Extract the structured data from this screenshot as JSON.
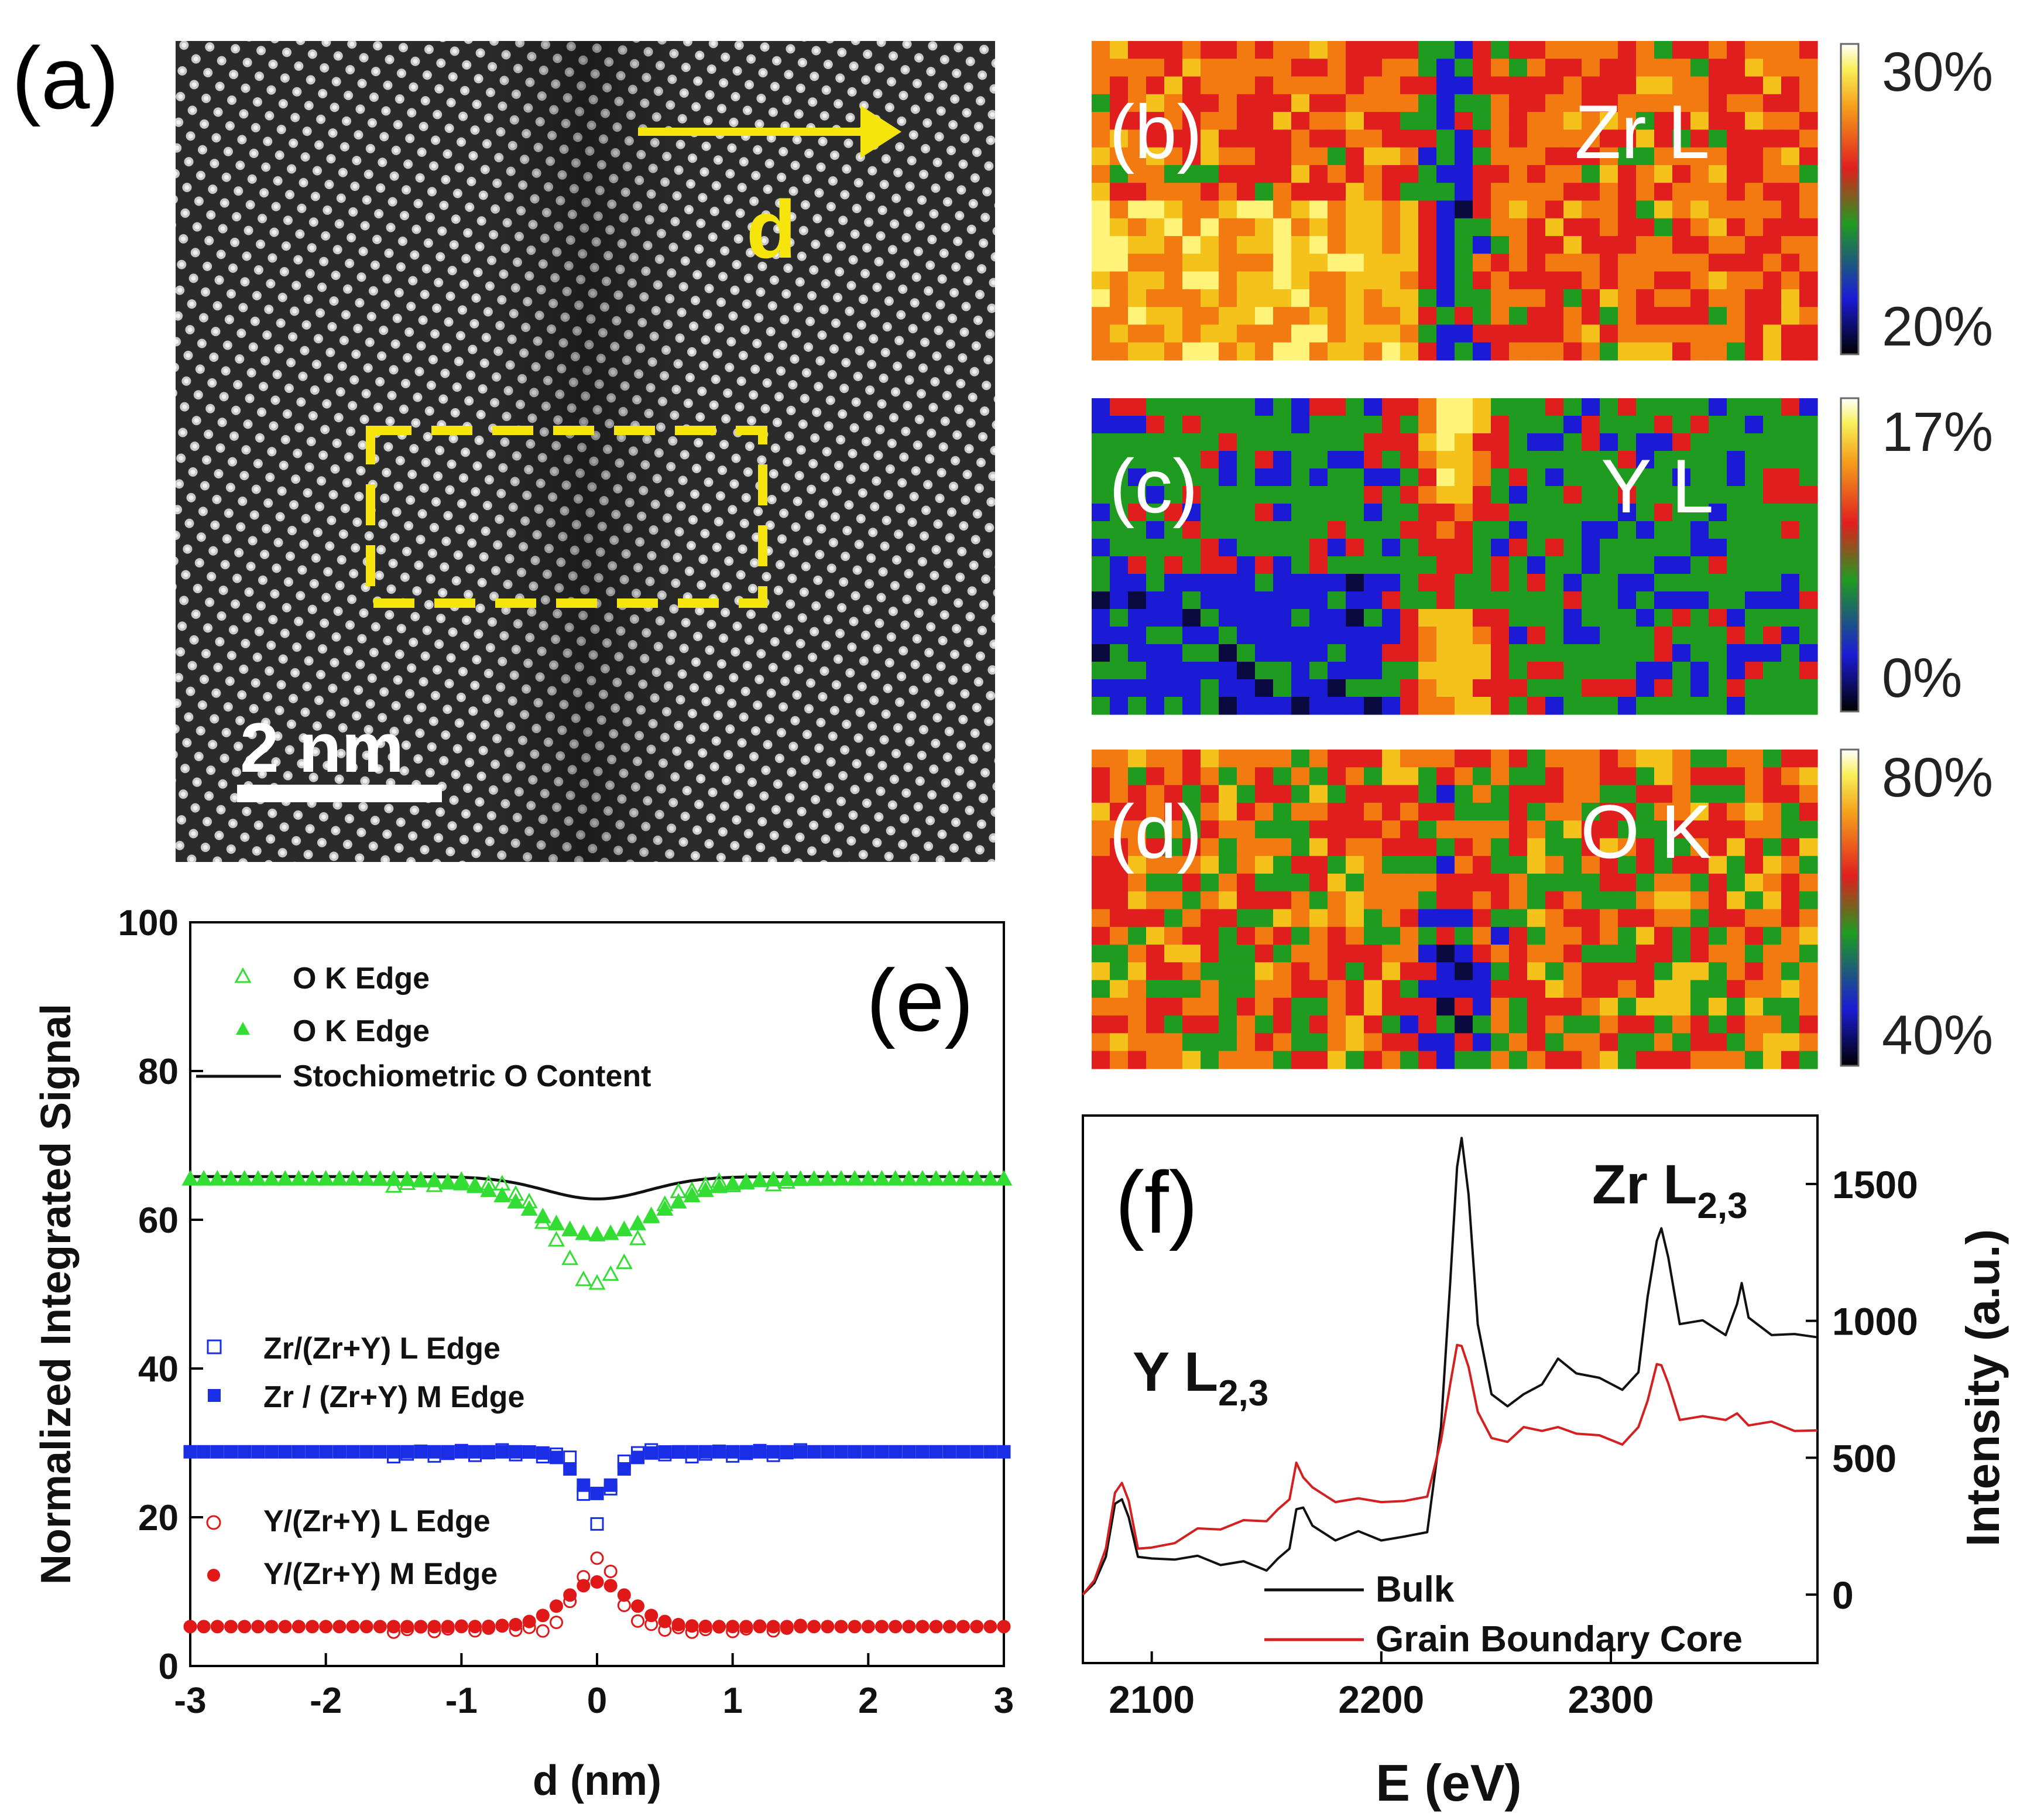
{
  "panel_a": {
    "label": "(a)",
    "arrow_label": "d",
    "scale_bar_label": "2 nm"
  },
  "maps": [
    {
      "label": "(b)",
      "element": "Zr L",
      "scale_max": "30%",
      "scale_min": "20%",
      "seed": 11,
      "pattern": "zr"
    },
    {
      "label": "(c)",
      "element": "Y L",
      "scale_max": "17%",
      "scale_min": "0%",
      "seed": 23,
      "pattern": "y"
    },
    {
      "label": "(d)",
      "element": "O K",
      "scale_max": "80%",
      "scale_min": "40%",
      "seed": 37,
      "pattern": "o"
    }
  ],
  "colors": {
    "annotation_yellow": "#f5e50c",
    "o_k_series": "#33dd33",
    "zr_series": "#1a2ee6",
    "y_series": "#e01818",
    "stoich_line": "#111111",
    "gb_core": "#d42020"
  },
  "chart_data": [
    {
      "type": "scatter",
      "panel": "(e)",
      "xlabel": "d (nm)",
      "ylabel": "Normalized Integrated Signal",
      "xlim": [
        -3,
        3
      ],
      "ylim": [
        0,
        100
      ],
      "xticks": [
        "-3",
        "-2",
        "-1",
        "0",
        "1",
        "2",
        "3"
      ],
      "yticks": [
        "0",
        "20",
        "40",
        "60",
        "80",
        "100"
      ],
      "legend_top": [
        {
          "name": "O K Edge",
          "marker": "open-triangle"
        },
        {
          "name": "O K Edge",
          "marker": "filled-triangle"
        },
        {
          "name": "Stochiometric O Content",
          "marker": "line"
        }
      ],
      "legend_mid": [
        {
          "name": "Zr/(Zr+Y)  L Edge",
          "marker": "open-square"
        },
        {
          "name": "Zr / (Zr+Y) M Edge",
          "marker": "filled-square"
        }
      ],
      "legend_bottom": [
        {
          "name": "Y/(Zr+Y) L Edge",
          "marker": "open-circle"
        },
        {
          "name": "Y/(Zr+Y) M Edge",
          "marker": "filled-circle"
        }
      ],
      "series": [
        {
          "name": "Stochiometric O Content",
          "kind": "line",
          "baseline": 65.8,
          "dip": 3.0,
          "width": 0.38
        },
        {
          "name": "O K Edge (filled)",
          "kind": "filled-triangle",
          "baseline": 65.5,
          "dip": 7.5,
          "width": 0.45,
          "x_start": -3,
          "x_end": 3,
          "step": 0.1
        },
        {
          "name": "O K Edge (open)",
          "kind": "open-triangle",
          "baseline": 65.0,
          "dip": 13.5,
          "width": 0.28,
          "x_start": -1.5,
          "x_end": 1.5,
          "step": 0.1
        },
        {
          "name": "Zr/(Zr+Y) M Edge",
          "kind": "filled-square",
          "baseline": 28.8,
          "dip": 5.6,
          "width": 0.15,
          "x_start": -3,
          "x_end": 3,
          "step": 0.1
        },
        {
          "name": "Zr/(Zr+Y) L Edge",
          "kind": "open-square",
          "baseline": 28.6,
          "dip": 9.5,
          "width": 0.09,
          "x_start": -1.5,
          "x_end": 1.5,
          "step": 0.1
        },
        {
          "name": "Y/(Zr+Y) M Edge",
          "kind": "filled-circle",
          "baseline": 5.3,
          "bump": 6.0,
          "width": 0.24,
          "x_start": -3,
          "x_end": 3,
          "step": 0.1
        },
        {
          "name": "Y/(Zr+Y) L Edge",
          "kind": "open-circle",
          "baseline": 5.0,
          "bump": 9.5,
          "width": 0.14,
          "x_start": -1.5,
          "x_end": 1.5,
          "step": 0.1
        }
      ],
      "panel_label": "(e)"
    },
    {
      "type": "line",
      "panel": "(f)",
      "xlabel": "E (eV)",
      "ylabel": "Intensity (a.u.)",
      "xlim": [
        2070,
        2390
      ],
      "ylim": [
        -250,
        1750
      ],
      "xticks": [
        2100,
        2200,
        2300
      ],
      "yticks": [
        0,
        500,
        1000,
        1500
      ],
      "annotations": [
        {
          "text": "Y L",
          "sub": "2,3"
        },
        {
          "text": "Zr L",
          "sub": "2,3"
        }
      ],
      "panel_label": "(f)",
      "series": [
        {
          "name": "Bulk",
          "color": "#111111",
          "x": [
            2070,
            2075,
            2080,
            2084,
            2087,
            2090,
            2094,
            2100,
            2110,
            2120,
            2130,
            2140,
            2150,
            2155,
            2160,
            2163,
            2166,
            2170,
            2180,
            2190,
            2200,
            2210,
            2220,
            2226,
            2230,
            2233,
            2235,
            2238,
            2242,
            2248,
            2255,
            2262,
            2270,
            2277,
            2285,
            2295,
            2305,
            2312,
            2316,
            2320,
            2322,
            2325,
            2330,
            2340,
            2350,
            2355,
            2357,
            2360,
            2370,
            2380,
            2390
          ],
          "y": [
            0,
            30,
            150,
            320,
            360,
            270,
            150,
            120,
            140,
            130,
            120,
            110,
            100,
            120,
            180,
            300,
            330,
            240,
            210,
            220,
            210,
            200,
            240,
            600,
            1150,
            1550,
            1680,
            1450,
            1000,
            720,
            700,
            720,
            780,
            850,
            820,
            780,
            760,
            800,
            1100,
            1280,
            1350,
            1220,
            1000,
            990,
            960,
            1050,
            1150,
            1000,
            960,
            940,
            940
          ]
        },
        {
          "name": "Grain Boundary Core",
          "color": "#d42020",
          "x": [
            2070,
            2075,
            2080,
            2084,
            2087,
            2090,
            2094,
            2100,
            2110,
            2120,
            2130,
            2140,
            2150,
            2155,
            2160,
            2163,
            2166,
            2170,
            2180,
            2190,
            2200,
            2210,
            2220,
            2226,
            2230,
            2233,
            2235,
            2238,
            2242,
            2248,
            2255,
            2262,
            2270,
            2277,
            2285,
            2295,
            2305,
            2312,
            2316,
            2320,
            2322,
            2325,
            2330,
            2340,
            2350,
            2355,
            2360,
            2370,
            2380,
            2390
          ],
          "y": [
            0,
            40,
            180,
            360,
            420,
            330,
            180,
            160,
            200,
            230,
            250,
            260,
            280,
            300,
            360,
            470,
            440,
            380,
            350,
            340,
            350,
            330,
            370,
            550,
            780,
            900,
            920,
            820,
            680,
            560,
            570,
            600,
            610,
            600,
            600,
            570,
            560,
            600,
            720,
            830,
            850,
            760,
            650,
            640,
            650,
            650,
            630,
            620,
            610,
            600
          ]
        }
      ],
      "legend": [
        "Bulk",
        "Grain Boundary Core"
      ]
    }
  ]
}
